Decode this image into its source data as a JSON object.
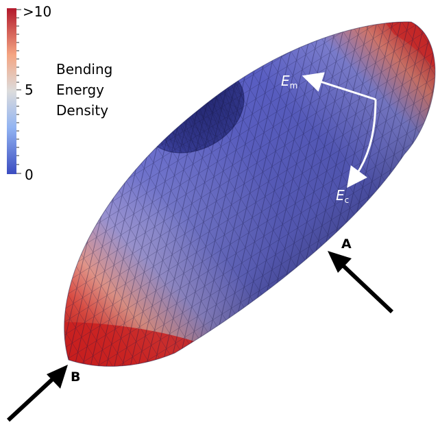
{
  "colorbar": {
    "title_lines": [
      "Bending",
      "Energy",
      "Density"
    ],
    "ticks": {
      "max": ">10",
      "mid": "5",
      "min": "0"
    },
    "colors": {
      "high": "#b2182b",
      "upper": "#f4a582",
      "middle": "#dcdcdc",
      "lower": "#92b4f2",
      "low": "#3b4cc0"
    }
  },
  "annotations": {
    "em": {
      "symbol": "E",
      "subscript": "m"
    },
    "ec": {
      "symbol": "E",
      "subscript": "c"
    },
    "point_a": "A",
    "point_b": "B"
  },
  "surface": {
    "colors": {
      "base": "#5a5fc4",
      "dark": "#2f3380",
      "light": "#8b8fe0",
      "hot": "#d32f2f",
      "warm": "#f08a7a"
    }
  }
}
